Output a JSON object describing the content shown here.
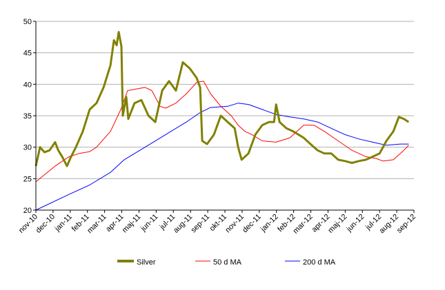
{
  "chart_data": {
    "type": "line",
    "title": "",
    "xlabel": "",
    "ylabel": "",
    "ylim": [
      20,
      50
    ],
    "yticks": [
      20,
      25,
      30,
      35,
      40,
      45,
      50
    ],
    "grid": true,
    "legend_position": "bottom",
    "x_unit": "months since nov-10",
    "categories": [
      "nov-10",
      "dec-10",
      "jan-11",
      "feb-11",
      "mar-11",
      "apr-11",
      "maj-11",
      "jun-11",
      "jul-11",
      "aug-11",
      "sep-11",
      "okt-11",
      "nov-11",
      "dec-11",
      "jan-12",
      "feb-12",
      "mar-12",
      "apr-12",
      "maj-12",
      "jun-12",
      "jul-12",
      "aug-12",
      "sep-12"
    ],
    "series": [
      {
        "name": "Silver",
        "color": "#808000",
        "x": [
          0,
          0.24,
          0.5,
          0.8,
          1.12,
          1.3,
          1.53,
          1.81,
          2.0,
          2.33,
          2.73,
          3.13,
          3.53,
          3.94,
          4.34,
          4.54,
          4.7,
          4.82,
          4.98,
          5.06,
          5.26,
          5.38,
          5.74,
          6.14,
          6.55,
          6.95,
          7.35,
          7.75,
          8.15,
          8.55,
          8.96,
          9.36,
          9.56,
          9.68,
          9.96,
          10.36,
          10.76,
          11.16,
          11.57,
          11.77,
          11.97,
          12.37,
          12.77,
          13.17,
          13.57,
          13.86,
          13.98,
          14.18,
          14.58,
          14.98,
          15.58,
          15.98,
          16.39,
          16.79,
          17.19,
          17.59,
          17.99,
          18.39,
          18.8,
          19.2,
          19.6,
          20.0,
          20.4,
          20.8,
          21.12,
          21.41,
          21.69
        ],
        "y": [
          27,
          30,
          29.2,
          29.5,
          30.8,
          29.5,
          28.5,
          27,
          28.2,
          30,
          32.5,
          36,
          37,
          39.5,
          43,
          47,
          46.2,
          48.3,
          46,
          35,
          38,
          34.5,
          37,
          37.5,
          35,
          34,
          39,
          40.5,
          39,
          43.5,
          42.5,
          41,
          39.5,
          31,
          30.5,
          32,
          35,
          34,
          33,
          30,
          28,
          29,
          32,
          33.5,
          34,
          34,
          36.8,
          34,
          33,
          32.5,
          31.5,
          30.5,
          29.5,
          29,
          29,
          28,
          27.8,
          27.5,
          27.8,
          28,
          28.5,
          29,
          31,
          32.5,
          34.8,
          34.5,
          34
        ]
      },
      {
        "name": "50 d MA",
        "color": "#ff0000",
        "x": [
          0,
          1.12,
          1.93,
          2.53,
          3.13,
          3.53,
          4.34,
          4.94,
          5.34,
          5.94,
          6.35,
          6.75,
          7.23,
          7.55,
          8.15,
          8.76,
          9.36,
          9.76,
          10.16,
          10.76,
          11.37,
          11.77,
          12.17,
          12.57,
          13.17,
          13.98,
          14.78,
          15.58,
          16.18,
          16.79,
          17.59,
          18.39,
          19.2,
          19.8,
          20.2,
          20.8,
          21.41,
          21.69
        ],
        "y": [
          24.5,
          27,
          28.5,
          29,
          29.3,
          30,
          32.5,
          36,
          39,
          39.3,
          39.5,
          39,
          36.5,
          36.2,
          37,
          38.5,
          40.3,
          40.5,
          38.5,
          36.5,
          35,
          33.5,
          32.5,
          32,
          31,
          30.8,
          31.5,
          33.5,
          33.5,
          32.5,
          31,
          29.5,
          28.5,
          28.2,
          27.8,
          28,
          29.5,
          30.3
        ]
      },
      {
        "name": "200 d MA",
        "color": "#0000ff",
        "x": [
          0,
          1.93,
          3.13,
          4.34,
          5.14,
          6.35,
          7.55,
          8.76,
          9.56,
          10.16,
          11.16,
          11.77,
          12.37,
          13.17,
          13.98,
          14.78,
          15.58,
          16.39,
          17.19,
          17.99,
          18.8,
          19.6,
          20.4,
          21.2,
          21.69
        ],
        "y": [
          20,
          22.5,
          24,
          26,
          28,
          30,
          32,
          34,
          35.5,
          36.3,
          36.5,
          37,
          36.8,
          36,
          35.2,
          34.8,
          34.5,
          34,
          33,
          32,
          31.3,
          30.8,
          30.3,
          30.5,
          30.5
        ]
      }
    ]
  }
}
